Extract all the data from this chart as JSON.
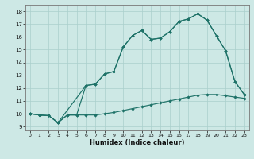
{
  "xlabel": "Humidex (Indice chaleur)",
  "bg_color": "#cde8e5",
  "grid_color": "#aacfcc",
  "line_color": "#1e7268",
  "xlim": [
    -0.5,
    23.5
  ],
  "ylim": [
    8.7,
    18.5
  ],
  "xticks": [
    0,
    1,
    2,
    3,
    4,
    5,
    6,
    7,
    8,
    9,
    10,
    11,
    12,
    13,
    14,
    15,
    16,
    17,
    18,
    19,
    20,
    21,
    22,
    23
  ],
  "yticks": [
    9,
    10,
    11,
    12,
    13,
    14,
    15,
    16,
    17,
    18
  ],
  "line1_x": [
    0,
    1,
    2,
    3,
    4,
    5,
    6,
    7,
    8,
    9,
    10,
    11,
    12,
    13,
    14,
    15,
    16,
    17,
    18,
    19,
    20,
    21,
    22,
    23
  ],
  "line1_y": [
    10.0,
    9.9,
    9.85,
    9.3,
    9.9,
    9.9,
    9.9,
    9.9,
    10.0,
    10.1,
    10.25,
    10.4,
    10.55,
    10.7,
    10.85,
    11.0,
    11.15,
    11.3,
    11.45,
    11.5,
    11.5,
    11.4,
    11.3,
    11.2
  ],
  "line2_x": [
    0,
    1,
    2,
    3,
    4,
    5,
    6,
    7,
    8,
    9,
    10,
    11,
    12,
    13,
    14,
    15,
    16,
    17,
    18,
    19,
    20,
    21,
    22,
    23
  ],
  "line2_y": [
    10.0,
    9.9,
    9.85,
    9.3,
    9.9,
    9.9,
    12.2,
    12.3,
    13.1,
    13.3,
    15.2,
    16.1,
    16.5,
    15.8,
    15.9,
    16.4,
    17.2,
    17.4,
    17.8,
    17.3,
    16.1,
    14.9,
    12.5,
    11.5
  ],
  "line3_x": [
    0,
    1,
    2,
    3,
    6,
    7,
    8,
    9,
    10,
    11,
    12,
    13,
    14,
    15,
    16,
    17,
    18,
    19,
    20,
    21,
    22,
    23
  ],
  "line3_y": [
    10.0,
    9.9,
    9.85,
    9.3,
    12.2,
    12.3,
    13.1,
    13.3,
    15.2,
    16.1,
    16.5,
    15.8,
    15.9,
    16.4,
    17.2,
    17.4,
    17.8,
    17.3,
    16.1,
    14.9,
    12.5,
    11.5
  ]
}
